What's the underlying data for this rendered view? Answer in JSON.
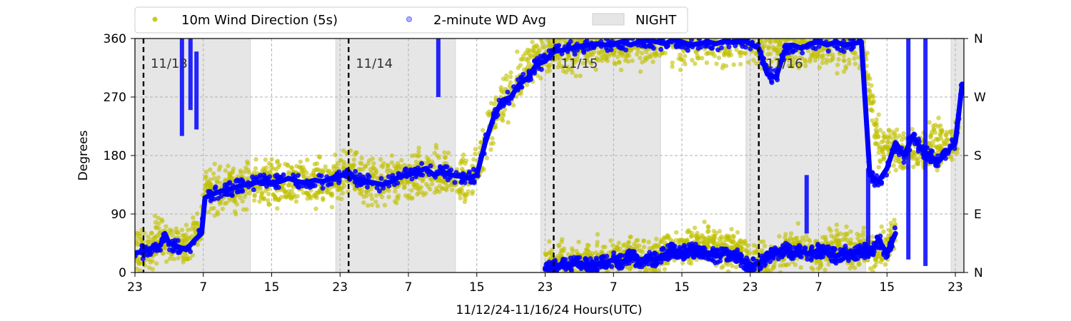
{
  "chart_data": {
    "type": "scatter",
    "xlabel": "11/12/24-11/16/24  Hours(UTC)",
    "ylabel": "Degrees",
    "xlim": [
      23,
      120
    ],
    "ylim": [
      0,
      360
    ],
    "x_ticks": [
      {
        "v": 23,
        "label": "23"
      },
      {
        "v": 31,
        "label": "7"
      },
      {
        "v": 39,
        "label": "15"
      },
      {
        "v": 47,
        "label": "23"
      },
      {
        "v": 55,
        "label": "7"
      },
      {
        "v": 63,
        "label": "15"
      },
      {
        "v": 71,
        "label": "23"
      },
      {
        "v": 79,
        "label": "7"
      },
      {
        "v": 87,
        "label": "15"
      },
      {
        "v": 95,
        "label": "23"
      },
      {
        "v": 103,
        "label": "7"
      },
      {
        "v": 111,
        "label": "15"
      },
      {
        "v": 119,
        "label": "23"
      }
    ],
    "y_ticks": [
      0,
      90,
      180,
      270,
      360
    ],
    "y_right_ticks": [
      {
        "v": 0,
        "label": "N"
      },
      {
        "v": 90,
        "label": "E"
      },
      {
        "v": 180,
        "label": "S"
      },
      {
        "v": 270,
        "label": "W"
      },
      {
        "v": 360,
        "label": "N"
      }
    ],
    "grid": true,
    "day_markers": [
      {
        "x": 24,
        "label": "11/13"
      },
      {
        "x": 48,
        "label": "11/14"
      },
      {
        "x": 72,
        "label": "11/15"
      },
      {
        "x": 96,
        "label": "11/16"
      }
    ],
    "night_periods": [
      [
        23,
        36.5
      ],
      [
        46.5,
        60.5
      ],
      [
        70.5,
        84.5
      ],
      [
        94.5,
        108.5
      ],
      [
        118.5,
        120
      ]
    ],
    "legend": {
      "placement": "top",
      "entries": [
        {
          "label": "10m Wind Direction (5s)",
          "color": "#bfbf00",
          "marker": "circle"
        },
        {
          "label": "2-minute WD Avg",
          "color": "#0000ff",
          "marker": "circle-faint"
        },
        {
          "label": "NIGHT",
          "color": "#e6e6e6",
          "marker": "patch"
        }
      ]
    },
    "colors": {
      "raw": "#bfbf00",
      "avg": "#0000ff",
      "night": "#e6e6e6"
    },
    "series": [
      {
        "name": "10m Wind Direction (5s)",
        "spread": 35,
        "points": [
          [
            23,
            35
          ],
          [
            25,
            40
          ],
          [
            26,
            55
          ],
          [
            27,
            40
          ],
          [
            28,
            45
          ],
          [
            29,
            40
          ],
          [
            30,
            55
          ],
          [
            30.8,
            60
          ],
          [
            31.1,
            125
          ],
          [
            33,
            128
          ],
          [
            35,
            132
          ],
          [
            37,
            138
          ],
          [
            39,
            135
          ],
          [
            41,
            140
          ],
          [
            43,
            138
          ],
          [
            45,
            140
          ],
          [
            47,
            145
          ],
          [
            48,
            150
          ],
          [
            50,
            140
          ],
          [
            52,
            140
          ],
          [
            54,
            145
          ],
          [
            55,
            138
          ],
          [
            56,
            145
          ],
          [
            57,
            150
          ],
          [
            58,
            155
          ],
          [
            59,
            150
          ],
          [
            60,
            150
          ],
          [
            61,
            145
          ],
          [
            62,
            140
          ],
          [
            63,
            155
          ],
          [
            64,
            200
          ],
          [
            65,
            240
          ],
          [
            66,
            260
          ],
          [
            67,
            280
          ],
          [
            68,
            300
          ],
          [
            69,
            320
          ],
          [
            70,
            330
          ],
          [
            71,
            335
          ],
          [
            72,
            340
          ],
          [
            74,
            345
          ],
          [
            76,
            350
          ],
          [
            78,
            355
          ],
          [
            80,
            350
          ],
          [
            82,
            355
          ],
          [
            84,
            355
          ],
          [
            86,
            358
          ],
          [
            88,
            355
          ],
          [
            90,
            352
          ],
          [
            92,
            355
          ],
          [
            94,
            358
          ],
          [
            96,
            350
          ],
          [
            98,
            345
          ],
          [
            100,
            350
          ],
          [
            102,
            352
          ],
          [
            104,
            355
          ],
          [
            106,
            350
          ],
          [
            108,
            352
          ],
          [
            110,
            200
          ],
          [
            112,
            190
          ],
          [
            114,
            185
          ],
          [
            116,
            190
          ],
          [
            118,
            200
          ],
          [
            119.5,
            210
          ]
        ],
        "wrap_points": [
          [
            71,
            10
          ],
          [
            73,
            15
          ],
          [
            75,
            12
          ],
          [
            77,
            18
          ],
          [
            79,
            20
          ],
          [
            81,
            25
          ],
          [
            83,
            20
          ],
          [
            85,
            30
          ],
          [
            87,
            40
          ],
          [
            89,
            45
          ],
          [
            91,
            45
          ],
          [
            93,
            35
          ],
          [
            95,
            15
          ],
          [
            97,
            20
          ],
          [
            99,
            35
          ],
          [
            101,
            40
          ],
          [
            103,
            30
          ],
          [
            105,
            40
          ],
          [
            107,
            35
          ],
          [
            109,
            30
          ],
          [
            111,
            40
          ],
          [
            112,
            60
          ]
        ]
      },
      {
        "name": "2-minute WD Avg",
        "points": [
          [
            23,
            30
          ],
          [
            24,
            32
          ],
          [
            25,
            38
          ],
          [
            26,
            42
          ],
          [
            26.5,
            60
          ],
          [
            27,
            45
          ],
          [
            28,
            40
          ],
          [
            29,
            35
          ],
          [
            30,
            50
          ],
          [
            30.8,
            60
          ],
          [
            31.2,
            115
          ],
          [
            32,
            120
          ],
          [
            33,
            125
          ],
          [
            34,
            128
          ],
          [
            35,
            132
          ],
          [
            36,
            135
          ],
          [
            37,
            138
          ],
          [
            38,
            140
          ],
          [
            39,
            138
          ],
          [
            40,
            140
          ],
          [
            41,
            145
          ],
          [
            42,
            140
          ],
          [
            43,
            138
          ],
          [
            44,
            142
          ],
          [
            45,
            140
          ],
          [
            46,
            145
          ],
          [
            47,
            148
          ],
          [
            48,
            155
          ],
          [
            49,
            142
          ],
          [
            50,
            140
          ],
          [
            51,
            138
          ],
          [
            52,
            135
          ],
          [
            53,
            140
          ],
          [
            54,
            148
          ],
          [
            55,
            150
          ],
          [
            56,
            155
          ],
          [
            57,
            160
          ],
          [
            58,
            150
          ],
          [
            59,
            155
          ],
          [
            60,
            150
          ],
          [
            61,
            148
          ],
          [
            62,
            145
          ],
          [
            63,
            150
          ],
          [
            64,
            200
          ],
          [
            65,
            240
          ],
          [
            66,
            265
          ],
          [
            67,
            270
          ],
          [
            68,
            290
          ],
          [
            69,
            300
          ],
          [
            70,
            320
          ],
          [
            71,
            325
          ],
          [
            72,
            340
          ],
          [
            73,
            342
          ],
          [
            74,
            345
          ],
          [
            75,
            348
          ],
          [
            76,
            350
          ],
          [
            77,
            352
          ],
          [
            78,
            350
          ],
          [
            79,
            352
          ],
          [
            80,
            355
          ],
          [
            81,
            350
          ],
          [
            82,
            355
          ],
          [
            83,
            357
          ],
          [
            84,
            355
          ],
          [
            85,
            352
          ],
          [
            86,
            358
          ],
          [
            87,
            355
          ],
          [
            88,
            350
          ],
          [
            89,
            352
          ],
          [
            90,
            355
          ],
          [
            91,
            352
          ],
          [
            92,
            356
          ],
          [
            93,
            354
          ],
          [
            94,
            358
          ],
          [
            95,
            352
          ],
          [
            96,
            345
          ],
          [
            97,
            305
          ],
          [
            98,
            300
          ],
          [
            99,
            340
          ],
          [
            100,
            350
          ],
          [
            101,
            345
          ],
          [
            102,
            352
          ],
          [
            103,
            355
          ],
          [
            104,
            350
          ],
          [
            105,
            355
          ],
          [
            106,
            350
          ],
          [
            107,
            352
          ],
          [
            108,
            355
          ],
          [
            109,
            150
          ],
          [
            110,
            140
          ],
          [
            111,
            160
          ],
          [
            112,
            200
          ],
          [
            113,
            180
          ],
          [
            114,
            210
          ],
          [
            115,
            190
          ],
          [
            116,
            180
          ],
          [
            117,
            170
          ],
          [
            118,
            185
          ],
          [
            119,
            200
          ],
          [
            119.8,
            290
          ]
        ],
        "wrap_points": [
          [
            71,
            5
          ],
          [
            72,
            8
          ],
          [
            73,
            10
          ],
          [
            74,
            12
          ],
          [
            75,
            15
          ],
          [
            76,
            10
          ],
          [
            77,
            12
          ],
          [
            78,
            15
          ],
          [
            79,
            20
          ],
          [
            80,
            15
          ],
          [
            81,
            25
          ],
          [
            82,
            18
          ],
          [
            83,
            20
          ],
          [
            84,
            20
          ],
          [
            85,
            28
          ],
          [
            86,
            35
          ],
          [
            87,
            30
          ],
          [
            88,
            35
          ],
          [
            89,
            32
          ],
          [
            90,
            30
          ],
          [
            91,
            25
          ],
          [
            92,
            30
          ],
          [
            93,
            30
          ],
          [
            94,
            20
          ],
          [
            95,
            10
          ],
          [
            96,
            15
          ],
          [
            97,
            22
          ],
          [
            98,
            30
          ],
          [
            99,
            35
          ],
          [
            100,
            30
          ],
          [
            101,
            32
          ],
          [
            102,
            28
          ],
          [
            103,
            35
          ],
          [
            104,
            30
          ],
          [
            105,
            25
          ],
          [
            106,
            30
          ],
          [
            107,
            28
          ],
          [
            108,
            35
          ],
          [
            109,
            30
          ],
          [
            110,
            50
          ],
          [
            111,
            30
          ],
          [
            112,
            60
          ]
        ],
        "spikes": [
          {
            "x": 28.5,
            "from": 210,
            "to": 360
          },
          {
            "x": 29.5,
            "from": 250,
            "to": 360
          },
          {
            "x": 30.2,
            "from": 220,
            "to": 340
          },
          {
            "x": 58.5,
            "from": 270,
            "to": 360
          },
          {
            "x": 108.8,
            "from": 30,
            "to": 160
          },
          {
            "x": 101.6,
            "from": 60,
            "to": 150
          },
          {
            "x": 113.5,
            "from": 20,
            "to": 360
          },
          {
            "x": 115.5,
            "from": 10,
            "to": 360
          }
        ]
      }
    ]
  }
}
